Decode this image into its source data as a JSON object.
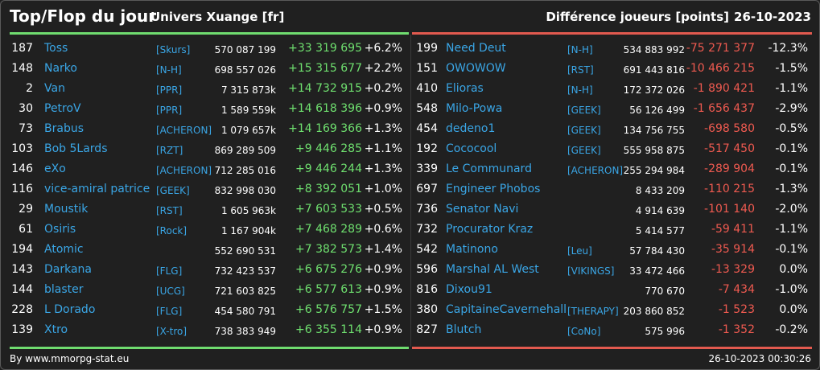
{
  "header": {
    "title": "Top/Flop du jour",
    "universe": "Univers Xuange [fr]",
    "metric": "Différence joueurs [points]",
    "date": "26-10-2023"
  },
  "colors": {
    "top_accent": "#6fdc6f",
    "flop_accent": "#e25a4f",
    "name_color": "#3aa6e6",
    "background": "#202020"
  },
  "top": [
    {
      "rank": "187",
      "name": "Toss",
      "alliance": "[Skurs]",
      "points": "570 087 199",
      "diff": "+33 319 695",
      "pct": "+6.2%"
    },
    {
      "rank": "148",
      "name": "Narko",
      "alliance": "[N-H]",
      "points": "698 557 026",
      "diff": "+15 315 677",
      "pct": "+2.2%"
    },
    {
      "rank": "2",
      "name": "Van",
      "alliance": "[PPR]",
      "points": "7 315 873k",
      "diff": "+14 732 915",
      "pct": "+0.2%"
    },
    {
      "rank": "30",
      "name": "PetroV",
      "alliance": "[PPR]",
      "points": "1 589 559k",
      "diff": "+14 618 396",
      "pct": "+0.9%"
    },
    {
      "rank": "73",
      "name": "Brabus",
      "alliance": "[ACHERON]",
      "points": "1 079 657k",
      "diff": "+14 169 366",
      "pct": "+1.3%"
    },
    {
      "rank": "103",
      "name": "Bob 5Lards",
      "alliance": "[RZT]",
      "points": "869 289 509",
      "diff": "+9 446 285",
      "pct": "+1.1%"
    },
    {
      "rank": "146",
      "name": "eXo",
      "alliance": "[ACHERON]",
      "points": "712 285 016",
      "diff": "+9 446 244",
      "pct": "+1.3%"
    },
    {
      "rank": "116",
      "name": "vice-amiral patrice",
      "alliance": "[GEEK]",
      "points": "832 998 030",
      "diff": "+8 392 051",
      "pct": "+1.0%"
    },
    {
      "rank": "29",
      "name": "Moustik",
      "alliance": "[RST]",
      "points": "1 605 963k",
      "diff": "+7 603 533",
      "pct": "+0.5%"
    },
    {
      "rank": "61",
      "name": "Osiris",
      "alliance": "[Rock]",
      "points": "1 167 904k",
      "diff": "+7 468 289",
      "pct": "+0.6%"
    },
    {
      "rank": "194",
      "name": "Atomic",
      "alliance": "",
      "points": "552 690 531",
      "diff": "+7 382 573",
      "pct": "+1.4%"
    },
    {
      "rank": "143",
      "name": "Darkana",
      "alliance": "[FLG]",
      "points": "732 423 537",
      "diff": "+6 675 276",
      "pct": "+0.9%"
    },
    {
      "rank": "144",
      "name": "blaster",
      "alliance": "[UCG]",
      "points": "721 603 825",
      "diff": "+6 577 613",
      "pct": "+0.9%"
    },
    {
      "rank": "228",
      "name": "L Dorado",
      "alliance": "[FLG]",
      "points": "454 580 791",
      "diff": "+6 576 757",
      "pct": "+1.5%"
    },
    {
      "rank": "139",
      "name": "Xtro",
      "alliance": "[X-tro]",
      "points": "738 383 949",
      "diff": "+6 355 114",
      "pct": "+0.9%"
    }
  ],
  "flop": [
    {
      "rank": "199",
      "name": "Need Deut",
      "alliance": "[N-H]",
      "points": "534 883 992",
      "diff": "-75 271 377",
      "pct": "-12.3%"
    },
    {
      "rank": "151",
      "name": "OWOWOW",
      "alliance": "[RST]",
      "points": "691 443 816",
      "diff": "-10 466 215",
      "pct": "-1.5%"
    },
    {
      "rank": "410",
      "name": "Elioras",
      "alliance": "[N-H]",
      "points": "172 372 026",
      "diff": "-1 890 421",
      "pct": "-1.1%"
    },
    {
      "rank": "548",
      "name": "Milo-Powa",
      "alliance": "[GEEK]",
      "points": "56 126 499",
      "diff": "-1 656 437",
      "pct": "-2.9%"
    },
    {
      "rank": "454",
      "name": "dedeno1",
      "alliance": "[GEEK]",
      "points": "134 756 755",
      "diff": "-698 580",
      "pct": "-0.5%"
    },
    {
      "rank": "192",
      "name": "Cococool",
      "alliance": "[GEEK]",
      "points": "555 958 875",
      "diff": "-517 450",
      "pct": "-0.1%"
    },
    {
      "rank": "339",
      "name": "Le Communard",
      "alliance": "[ACHERON]",
      "points": "255 294 984",
      "diff": "-289 904",
      "pct": "-0.1%"
    },
    {
      "rank": "697",
      "name": "Engineer Phobos",
      "alliance": "",
      "points": "8 433 209",
      "diff": "-110 215",
      "pct": "-1.3%"
    },
    {
      "rank": "736",
      "name": "Senator Navi",
      "alliance": "",
      "points": "4 914 639",
      "diff": "-101 140",
      "pct": "-2.0%"
    },
    {
      "rank": "732",
      "name": "Procurator Kraz",
      "alliance": "",
      "points": "5 414 577",
      "diff": "-59 411",
      "pct": "-1.1%"
    },
    {
      "rank": "542",
      "name": "Matinono",
      "alliance": "[Leu]",
      "points": "57 784 430",
      "diff": "-35 914",
      "pct": "-0.1%"
    },
    {
      "rank": "596",
      "name": "Marshal AL West",
      "alliance": "[VIKINGS]",
      "points": "33 472 466",
      "diff": "-13 329",
      "pct": "0.0%"
    },
    {
      "rank": "816",
      "name": "Dixou91",
      "alliance": "",
      "points": "770 670",
      "diff": "-7 434",
      "pct": "-1.0%"
    },
    {
      "rank": "380",
      "name": "CapitaineCavernehall",
      "alliance": "[THERAPY]",
      "points": "203 860 852",
      "diff": "-1 523",
      "pct": "0.0%"
    },
    {
      "rank": "827",
      "name": "Blutch",
      "alliance": "[CoNo]",
      "points": "575 996",
      "diff": "-1 352",
      "pct": "-0.2%"
    }
  ],
  "footer": {
    "source": "By www.mmorpg-stat.eu",
    "timestamp": "26-10-2023 00:30:26"
  }
}
